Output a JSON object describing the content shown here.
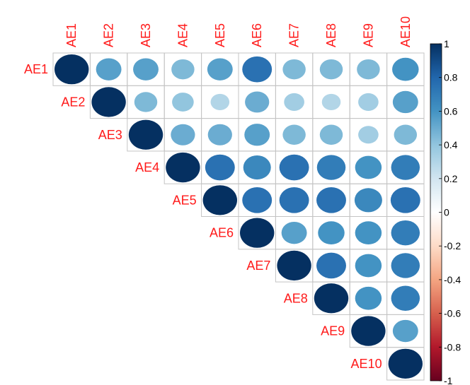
{
  "chart_data": {
    "type": "heatmap",
    "variables": [
      "AE1",
      "AE2",
      "AE3",
      "AE4",
      "AE5",
      "AE6",
      "AE7",
      "AE8",
      "AE9",
      "AE10"
    ],
    "matrix": [
      [
        1.0,
        0.55,
        0.55,
        0.45,
        0.55,
        0.75,
        0.45,
        0.45,
        0.45,
        0.6
      ],
      [
        0.55,
        1.0,
        0.45,
        0.4,
        0.3,
        0.5,
        0.35,
        0.3,
        0.35,
        0.55
      ],
      [
        0.55,
        0.45,
        1.0,
        0.5,
        0.5,
        0.55,
        0.45,
        0.45,
        0.35,
        0.45
      ],
      [
        0.45,
        0.4,
        0.5,
        1.0,
        0.75,
        0.65,
        0.75,
        0.7,
        0.6,
        0.7
      ],
      [
        0.55,
        0.3,
        0.5,
        0.75,
        1.0,
        0.75,
        0.75,
        0.75,
        0.65,
        0.75
      ],
      [
        0.75,
        0.5,
        0.55,
        0.65,
        0.75,
        1.0,
        0.55,
        0.6,
        0.6,
        0.7
      ],
      [
        0.45,
        0.35,
        0.45,
        0.75,
        0.75,
        0.55,
        1.0,
        0.75,
        0.6,
        0.7
      ],
      [
        0.45,
        0.3,
        0.45,
        0.7,
        0.75,
        0.6,
        0.75,
        1.0,
        0.6,
        0.7
      ],
      [
        0.45,
        0.35,
        0.35,
        0.6,
        0.65,
        0.6,
        0.6,
        0.6,
        1.0,
        0.55
      ],
      [
        0.6,
        0.55,
        0.45,
        0.7,
        0.75,
        0.7,
        0.7,
        0.7,
        0.55,
        1.0
      ]
    ],
    "triangle": "upper",
    "method": "circle",
    "colorbar": {
      "ticks": [
        "1",
        "0.8",
        "0.6",
        "0.4",
        "0.2",
        "0",
        "-0.2",
        "-0.4",
        "-0.6",
        "-0.8",
        "-1"
      ],
      "range": [
        -1,
        1
      ],
      "colors": [
        "#67001F",
        "#B2182B",
        "#D6604D",
        "#F4A582",
        "#FDDBC7",
        "#FFFFFF",
        "#D1E5F0",
        "#92C5DE",
        "#4393C3",
        "#2166AC",
        "#053061"
      ]
    },
    "label_color": "#FF0000",
    "grid": true
  }
}
